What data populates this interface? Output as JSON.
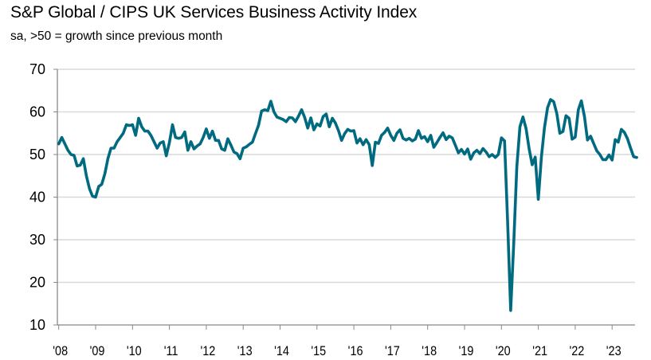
{
  "chart_data": {
    "type": "line",
    "title": "S&P Global / CIPS UK Services Business Activity Index",
    "subtitle": "sa, >50 = growth since previous month",
    "xlabel": "",
    "ylabel": "",
    "ylim": [
      10,
      70
    ],
    "yticks": [
      10,
      20,
      30,
      40,
      50,
      60,
      70
    ],
    "xtick_labels": [
      "'08",
      "'09",
      "'10",
      "'11",
      "'12",
      "'13",
      "'14",
      "'15",
      "'16",
      "'17",
      "'18",
      "'19",
      "'20",
      "'21",
      "'22",
      "'23"
    ],
    "xtick_years": [
      2008,
      2009,
      2010,
      2011,
      2012,
      2013,
      2014,
      2015,
      2016,
      2017,
      2018,
      2019,
      2020,
      2021,
      2022,
      2023
    ],
    "grid": "horizontal",
    "line_color": "#006b80",
    "start": "2008-01",
    "frequency": "monthly",
    "series": [
      {
        "values": [
          52.5,
          54,
          52.5,
          51,
          50,
          49.8,
          47.3,
          47.5,
          49,
          45,
          42,
          40.2,
          40,
          42.5,
          43,
          45.5,
          49,
          51.5,
          51.5,
          53,
          54,
          55,
          57,
          56.8,
          57,
          54.5,
          58.5,
          56.5,
          55.5,
          55.5,
          54.5,
          53,
          51.5,
          52.7,
          53,
          49.7,
          52.8,
          57,
          54,
          53.8,
          54,
          55.3,
          51,
          53,
          51.3,
          52,
          52.5,
          54,
          56,
          53.8,
          55.5,
          53.3,
          53.3,
          51.3,
          51,
          53.7,
          52.2,
          50.6,
          50.2,
          49,
          51.5,
          51.8,
          52.4,
          52.9,
          54.9,
          56.9,
          60.2,
          60.5,
          60.3,
          62.5,
          60,
          58.8,
          58.5,
          58.2,
          57.7,
          58.7,
          58.6,
          57.7,
          59,
          60.5,
          58.7,
          56.2,
          58.6,
          55.8,
          57.2,
          56.7,
          58.9,
          59.5,
          56.5,
          58.5,
          57.4,
          55.6,
          53.3,
          54.9,
          55.9,
          55.5,
          55.6,
          52.7,
          53.7,
          52.3,
          53.5,
          52.3,
          47.4,
          52.9,
          52.6,
          54.5,
          55.2,
          56.2,
          54.5,
          53.3,
          55,
          55.8,
          53.8,
          53.4,
          53.8,
          53.2,
          53.6,
          55.6,
          53.8,
          54.2,
          53,
          54.5,
          51.7,
          52.8,
          54,
          55.1,
          53.5,
          54.3,
          53.9,
          52.2,
          50.4,
          51.2,
          50.1,
          51.3,
          48.9,
          50.4,
          51,
          50.2,
          51.4,
          50.6,
          49.5,
          50,
          49.3,
          50,
          53.9,
          53.2,
          34.5,
          13.4,
          29,
          47.1,
          56.5,
          58.8,
          56.1,
          51.4,
          47.6,
          49.4,
          39.5,
          49.5,
          56.3,
          61,
          62.9,
          62.4,
          59.6,
          55,
          55.4,
          59.1,
          58.5,
          53.6,
          54.1,
          60.5,
          62.6,
          58.9,
          53.4,
          54.3,
          52.6,
          50.9,
          50,
          48.8,
          48.8,
          49.9,
          48.7,
          53.5,
          52.9,
          55.9,
          55.2,
          53.7,
          51.5,
          49.5,
          49.3
        ]
      }
    ]
  }
}
